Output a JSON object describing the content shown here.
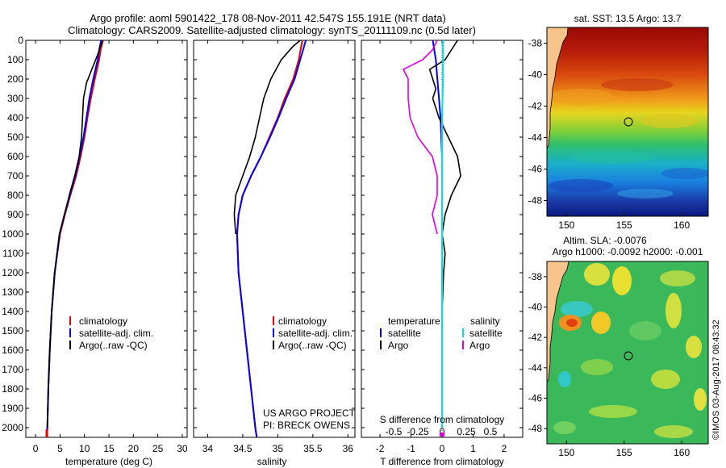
{
  "title_line1": "Argo profile: aoml 5901422_178 08-Nov-2011 42.547S 155.191E (NRT data)",
  "title_line2": "Climatology: CARS2009. Satellite-adjusted climatology: synTS_20111109.nc (0.5d later)",
  "colors": {
    "climatology": "#dd0000",
    "satellite": "#0000ee",
    "argo": "#000000",
    "salinity_satellite": "#00e0e0",
    "salinity_argo": "#dd00dd"
  },
  "legend": {
    "climatology": "climatology",
    "satellite_adj": "satellite-adj. clim.",
    "argo_raw": "Argo(..raw -QC)",
    "temperature_heading": "temperature",
    "salinity_heading": "salinity",
    "satellite": "satellite",
    "argo": "Argo"
  },
  "project": {
    "line1": "US ARGO PROJECT",
    "line2": "PI: BRECK OWENS"
  },
  "map_top_title": "sat. SST: 13.5  Argo: 13.7",
  "map_bottom_title_line1": "Altim. SLA: -0.0076",
  "map_bottom_title_line2": "Argo h1000: -0.0092  h2000: -0.001",
  "watermark": "©IMOS 03-Aug-2017 08:43:32",
  "map_lat_ticks": [
    "-38",
    "-40",
    "-42",
    "-44",
    "-46",
    "-48"
  ],
  "map_lon_ticks": [
    "150",
    "155",
    "160"
  ],
  "chart_data": [
    {
      "type": "line",
      "xlabel": "temperature (deg C)",
      "ylabel": "",
      "xlim": [
        -2,
        31
      ],
      "ylim": [
        2050,
        0
      ],
      "x_ticks": [
        0,
        5,
        10,
        15,
        20,
        25,
        30
      ],
      "y_ticks": [
        0,
        100,
        200,
        300,
        400,
        500,
        600,
        700,
        800,
        900,
        1000,
        1100,
        1200,
        1300,
        1400,
        1500,
        1600,
        1700,
        1800,
        1900,
        2000
      ],
      "series": [
        {
          "name": "climatology",
          "depth": [
            0,
            50,
            100,
            200,
            300,
            400,
            500,
            600,
            700,
            800,
            900,
            1000,
            1200,
            1400,
            1600,
            1800,
            2000,
            2050
          ],
          "values": [
            13.8,
            13.3,
            13.0,
            12.1,
            11.3,
            10.6,
            10.0,
            9.2,
            8.3,
            7.1,
            6.0,
            5.0,
            3.9,
            3.3,
            2.9,
            2.6,
            2.4,
            2.3
          ]
        },
        {
          "name": "satellite-adj. clim.",
          "depth": [
            0,
            50,
            100,
            200,
            300,
            400,
            500,
            600,
            700,
            800,
            900,
            1000,
            1200,
            1400,
            1600,
            1800,
            2000,
            2050
          ],
          "values": [
            13.4,
            13.0,
            12.7,
            11.8,
            11.0,
            10.4,
            9.8,
            9.0,
            8.1,
            7.0,
            5.9,
            4.9,
            3.9,
            3.3,
            2.9,
            2.6,
            2.4,
            2.3
          ]
        },
        {
          "name": "Argo(..raw -QC)",
          "depth": [
            0,
            30,
            80,
            150,
            220,
            300,
            400,
            500,
            600,
            700,
            800,
            900,
            1000,
            1200,
            1400,
            1600,
            1800,
            2000
          ],
          "values": [
            13.7,
            13.3,
            12.6,
            11.5,
            10.4,
            9.8,
            9.6,
            9.4,
            8.9,
            8.0,
            6.9,
            5.9,
            4.9,
            3.9,
            3.3,
            2.9,
            2.6,
            2.4
          ]
        }
      ]
    },
    {
      "type": "line",
      "xlabel": "salinity",
      "ylabel": "",
      "xlim": [
        33.8,
        36.1
      ],
      "ylim": [
        2050,
        0
      ],
      "x_ticks": [
        34,
        34.5,
        35,
        35.5,
        36
      ],
      "x_tick_labels": [
        "34",
        "34.5",
        "35",
        "35.5",
        "36"
      ],
      "series": [
        {
          "name": "climatology",
          "depth": [
            0,
            100,
            200,
            300,
            400,
            500,
            600,
            700,
            800,
            900,
            1000,
            1200,
            1400,
            1600,
            1800,
            2000,
            2050
          ],
          "values": [
            35.35,
            35.3,
            35.22,
            35.1,
            35.0,
            34.88,
            34.76,
            34.62,
            34.5,
            34.44,
            34.42,
            34.44,
            34.5,
            34.56,
            34.62,
            34.68,
            34.7
          ]
        },
        {
          "name": "satellite-adj. clim.",
          "depth": [
            0,
            100,
            200,
            300,
            400,
            500,
            600,
            700,
            800,
            900,
            1000,
            1200,
            1400,
            1600,
            1800,
            2000,
            2050
          ],
          "values": [
            35.4,
            35.32,
            35.24,
            35.12,
            35.01,
            34.89,
            34.76,
            34.62,
            34.5,
            34.44,
            34.42,
            34.44,
            34.5,
            34.56,
            34.62,
            34.68,
            34.7
          ]
        },
        {
          "name": "Argo(..raw -QC)",
          "depth": [
            0,
            30,
            100,
            200,
            300,
            400,
            500,
            600,
            700,
            800,
            900,
            1000
          ],
          "values": [
            35.32,
            35.22,
            35.05,
            34.9,
            34.8,
            34.74,
            34.68,
            34.6,
            34.5,
            34.4,
            34.38,
            34.4
          ]
        }
      ]
    },
    {
      "type": "line",
      "xlabel": "T difference from climatology",
      "xlabel_top": "S difference from climatology",
      "ylabel": "",
      "xlim": [
        -2.6,
        2.6
      ],
      "ylim": [
        2050,
        0
      ],
      "x_ticks": [
        -2,
        -1,
        0,
        1,
        2
      ],
      "x_tick_labels": [
        "-2",
        "-1",
        "0",
        "1",
        "2"
      ],
      "s_ticks": [
        -0.5,
        -0.25,
        0,
        0.25,
        0.5
      ],
      "s_tick_labels": [
        "-0.5",
        "-0.25",
        "0",
        "0.25",
        "0.5"
      ],
      "series": [
        {
          "name": "temperature satellite",
          "depth": [
            0,
            100,
            200,
            300,
            400,
            600,
            800,
            1000,
            1500,
            2000
          ],
          "values": [
            -0.3,
            -0.2,
            -0.15,
            -0.1,
            -0.05,
            0,
            0,
            0,
            0,
            0
          ]
        },
        {
          "name": "temperature Argo",
          "depth": [
            0,
            50,
            100,
            150,
            200,
            250,
            300,
            400,
            500,
            600,
            700,
            800,
            900,
            1000,
            1100,
            1200,
            1400,
            1600,
            1800,
            2000
          ],
          "values": [
            0.5,
            0.3,
            0.1,
            -0.4,
            -0.3,
            -0.2,
            -0.3,
            -0.1,
            0.2,
            0.5,
            0.6,
            0.3,
            0.1,
            0.0,
            0.1,
            0.05,
            0.0,
            0.0,
            0.0,
            0.0
          ]
        },
        {
          "name": "salinity satellite",
          "depth": [
            0,
            200,
            400,
            600,
            800,
            1000,
            1500,
            2000
          ],
          "values": [
            0.01,
            0.01,
            0.0,
            0.0,
            0.0,
            0.0,
            0.0,
            0.0
          ]
        },
        {
          "name": "salinity Argo",
          "depth": [
            0,
            50,
            100,
            150,
            200,
            250,
            300,
            400,
            500,
            600,
            700,
            800,
            900,
            1000
          ],
          "values": [
            -0.05,
            -0.1,
            -0.2,
            -0.4,
            -0.35,
            -0.35,
            -0.35,
            -0.33,
            -0.25,
            -0.1,
            -0.05,
            -0.05,
            -0.1,
            -0.05
          ]
        }
      ]
    }
  ]
}
